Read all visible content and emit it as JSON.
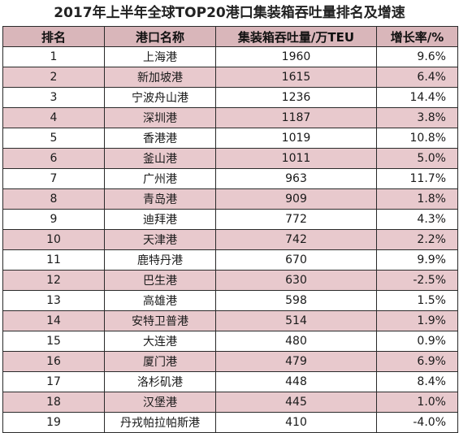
{
  "title": "2017年上半年全球TOP20港口集装箱吞吐量排名及增速",
  "columns": [
    "排名",
    "港口名称",
    "集装箱吞吐量/万TEU",
    "增长率/%"
  ],
  "rows": [
    {
      "rank": "1",
      "port": "上海港",
      "teu": "1960",
      "growth": "9.6%"
    },
    {
      "rank": "2",
      "port": "新加坡港",
      "teu": "1615",
      "growth": "6.4%"
    },
    {
      "rank": "3",
      "port": "宁波舟山港",
      "teu": "1236",
      "growth": "14.4%"
    },
    {
      "rank": "4",
      "port": "深圳港",
      "teu": "1187",
      "growth": "3.8%"
    },
    {
      "rank": "5",
      "port": "香港港",
      "teu": "1019",
      "growth": "10.8%"
    },
    {
      "rank": "6",
      "port": "釜山港",
      "teu": "1011",
      "growth": "5.0%"
    },
    {
      "rank": "7",
      "port": "广州港",
      "teu": "963",
      "growth": "11.7%"
    },
    {
      "rank": "8",
      "port": "青岛港",
      "teu": "909",
      "growth": "1.8%"
    },
    {
      "rank": "9",
      "port": "迪拜港",
      "teu": "772",
      "growth": "4.3%"
    },
    {
      "rank": "10",
      "port": "天津港",
      "teu": "742",
      "growth": "2.2%"
    },
    {
      "rank": "11",
      "port": "鹿特丹港",
      "teu": "670",
      "growth": "9.9%"
    },
    {
      "rank": "12",
      "port": "巴生港",
      "teu": "630",
      "growth": "-2.5%"
    },
    {
      "rank": "13",
      "port": "高雄港",
      "teu": "598",
      "growth": "1.5%"
    },
    {
      "rank": "14",
      "port": "安特卫普港",
      "teu": "514",
      "growth": "1.9%"
    },
    {
      "rank": "15",
      "port": "大连港",
      "teu": "480",
      "growth": "0.9%"
    },
    {
      "rank": "16",
      "port": "厦门港",
      "teu": "479",
      "growth": "6.9%"
    },
    {
      "rank": "17",
      "port": "洛杉矶港",
      "teu": "448",
      "growth": "8.4%"
    },
    {
      "rank": "18",
      "port": "汉堡港",
      "teu": "445",
      "growth": "1.0%"
    },
    {
      "rank": "19",
      "port": "丹戎帕拉帕斯港",
      "teu": "410",
      "growth": "-4.0%"
    }
  ],
  "colors": {
    "header_bg": "#d9b6ba",
    "stripe_bg": "#e8c9cd",
    "border": "#2a2a2a"
  }
}
